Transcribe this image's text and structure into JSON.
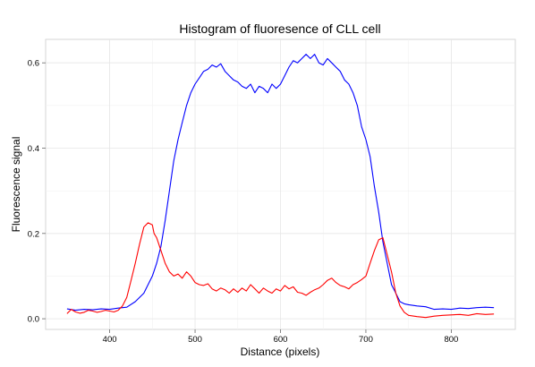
{
  "chart_data": {
    "type": "line",
    "title": "Histogram of fluoresence of CLL cell",
    "xlabel": "Distance (pixels)",
    "ylabel": "Fluorescence signal",
    "xlim": [
      325,
      875
    ],
    "ylim": [
      -0.025,
      0.655
    ],
    "xticks": [
      400,
      500,
      600,
      700,
      800
    ],
    "yticks": [
      0.0,
      0.2,
      0.4,
      0.6
    ],
    "ytick_labels": [
      "0.0",
      "0.2",
      "0.4",
      "0.6"
    ],
    "grid": true,
    "legend": "none",
    "series": [
      {
        "color": "#0000ff",
        "points": [
          [
            350,
            0.023
          ],
          [
            360,
            0.02
          ],
          [
            370,
            0.022
          ],
          [
            380,
            0.021
          ],
          [
            390,
            0.023
          ],
          [
            400,
            0.022
          ],
          [
            410,
            0.025
          ],
          [
            420,
            0.027
          ],
          [
            430,
            0.04
          ],
          [
            440,
            0.06
          ],
          [
            445,
            0.08
          ],
          [
            450,
            0.1
          ],
          [
            455,
            0.13
          ],
          [
            460,
            0.17
          ],
          [
            465,
            0.23
          ],
          [
            470,
            0.3
          ],
          [
            475,
            0.37
          ],
          [
            480,
            0.42
          ],
          [
            485,
            0.46
          ],
          [
            490,
            0.5
          ],
          [
            495,
            0.53
          ],
          [
            500,
            0.55
          ],
          [
            505,
            0.565
          ],
          [
            510,
            0.58
          ],
          [
            515,
            0.585
          ],
          [
            520,
            0.595
          ],
          [
            525,
            0.59
          ],
          [
            530,
            0.598
          ],
          [
            535,
            0.58
          ],
          [
            540,
            0.57
          ],
          [
            545,
            0.56
          ],
          [
            550,
            0.555
          ],
          [
            555,
            0.545
          ],
          [
            560,
            0.54
          ],
          [
            565,
            0.55
          ],
          [
            570,
            0.53
          ],
          [
            575,
            0.545
          ],
          [
            580,
            0.54
          ],
          [
            585,
            0.53
          ],
          [
            590,
            0.55
          ],
          [
            595,
            0.54
          ],
          [
            600,
            0.55
          ],
          [
            605,
            0.57
          ],
          [
            610,
            0.59
          ],
          [
            615,
            0.605
          ],
          [
            620,
            0.6
          ],
          [
            625,
            0.61
          ],
          [
            630,
            0.62
          ],
          [
            635,
            0.61
          ],
          [
            640,
            0.62
          ],
          [
            645,
            0.6
          ],
          [
            650,
            0.595
          ],
          [
            655,
            0.61
          ],
          [
            660,
            0.6
          ],
          [
            665,
            0.59
          ],
          [
            670,
            0.58
          ],
          [
            675,
            0.56
          ],
          [
            680,
            0.55
          ],
          [
            685,
            0.53
          ],
          [
            690,
            0.5
          ],
          [
            695,
            0.45
          ],
          [
            700,
            0.42
          ],
          [
            705,
            0.38
          ],
          [
            710,
            0.31
          ],
          [
            715,
            0.25
          ],
          [
            720,
            0.18
          ],
          [
            725,
            0.13
          ],
          [
            730,
            0.08
          ],
          [
            735,
            0.06
          ],
          [
            740,
            0.04
          ],
          [
            745,
            0.035
          ],
          [
            750,
            0.033
          ],
          [
            760,
            0.03
          ],
          [
            770,
            0.028
          ],
          [
            780,
            0.022
          ],
          [
            790,
            0.023
          ],
          [
            800,
            0.022
          ],
          [
            810,
            0.025
          ],
          [
            820,
            0.024
          ],
          [
            830,
            0.026
          ],
          [
            840,
            0.027
          ],
          [
            850,
            0.026
          ]
        ]
      },
      {
        "color": "#ff0000",
        "points": [
          [
            350,
            0.012
          ],
          [
            355,
            0.022
          ],
          [
            360,
            0.016
          ],
          [
            365,
            0.013
          ],
          [
            370,
            0.015
          ],
          [
            375,
            0.02
          ],
          [
            380,
            0.018
          ],
          [
            385,
            0.015
          ],
          [
            390,
            0.017
          ],
          [
            395,
            0.02
          ],
          [
            400,
            0.018
          ],
          [
            405,
            0.016
          ],
          [
            410,
            0.02
          ],
          [
            415,
            0.03
          ],
          [
            420,
            0.05
          ],
          [
            425,
            0.09
          ],
          [
            430,
            0.13
          ],
          [
            435,
            0.175
          ],
          [
            440,
            0.215
          ],
          [
            445,
            0.225
          ],
          [
            450,
            0.22
          ],
          [
            452,
            0.2
          ],
          [
            455,
            0.19
          ],
          [
            460,
            0.16
          ],
          [
            465,
            0.13
          ],
          [
            470,
            0.11
          ],
          [
            475,
            0.1
          ],
          [
            480,
            0.105
          ],
          [
            485,
            0.095
          ],
          [
            490,
            0.11
          ],
          [
            495,
            0.1
          ],
          [
            500,
            0.085
          ],
          [
            505,
            0.08
          ],
          [
            510,
            0.078
          ],
          [
            515,
            0.082
          ],
          [
            520,
            0.07
          ],
          [
            525,
            0.065
          ],
          [
            530,
            0.072
          ],
          [
            535,
            0.068
          ],
          [
            540,
            0.06
          ],
          [
            545,
            0.07
          ],
          [
            550,
            0.062
          ],
          [
            555,
            0.072
          ],
          [
            560,
            0.065
          ],
          [
            565,
            0.08
          ],
          [
            570,
            0.07
          ],
          [
            575,
            0.06
          ],
          [
            580,
            0.072
          ],
          [
            585,
            0.065
          ],
          [
            590,
            0.06
          ],
          [
            595,
            0.07
          ],
          [
            600,
            0.065
          ],
          [
            605,
            0.078
          ],
          [
            610,
            0.07
          ],
          [
            615,
            0.075
          ],
          [
            620,
            0.062
          ],
          [
            625,
            0.06
          ],
          [
            630,
            0.055
          ],
          [
            635,
            0.062
          ],
          [
            640,
            0.068
          ],
          [
            645,
            0.072
          ],
          [
            650,
            0.08
          ],
          [
            655,
            0.09
          ],
          [
            660,
            0.095
          ],
          [
            665,
            0.085
          ],
          [
            670,
            0.078
          ],
          [
            675,
            0.075
          ],
          [
            680,
            0.07
          ],
          [
            685,
            0.08
          ],
          [
            690,
            0.085
          ],
          [
            695,
            0.092
          ],
          [
            700,
            0.1
          ],
          [
            705,
            0.13
          ],
          [
            710,
            0.16
          ],
          [
            715,
            0.185
          ],
          [
            720,
            0.19
          ],
          [
            725,
            0.15
          ],
          [
            730,
            0.11
          ],
          [
            735,
            0.06
          ],
          [
            740,
            0.03
          ],
          [
            745,
            0.015
          ],
          [
            750,
            0.008
          ],
          [
            760,
            0.005
          ],
          [
            770,
            0.003
          ],
          [
            780,
            0.006
          ],
          [
            790,
            0.008
          ],
          [
            800,
            0.009
          ],
          [
            810,
            0.01
          ],
          [
            820,
            0.008
          ],
          [
            830,
            0.012
          ],
          [
            840,
            0.01
          ],
          [
            850,
            0.011
          ]
        ]
      }
    ]
  }
}
